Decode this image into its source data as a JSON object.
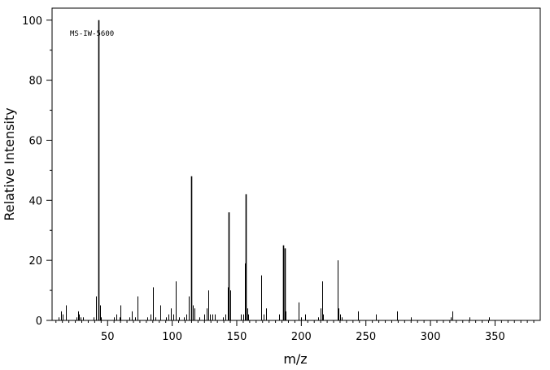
{
  "chart_data": {
    "type": "bar",
    "title": "",
    "annotation": "MS-IW-5600",
    "xlabel": "m/z",
    "ylabel": "Relative Intensity",
    "xlim": [
      7,
      385
    ],
    "ylim": [
      0,
      104
    ],
    "x_ticks": [
      50,
      100,
      150,
      200,
      250,
      300,
      350
    ],
    "y_ticks": [
      0,
      20,
      40,
      60,
      80,
      100
    ],
    "grid": false,
    "legend": "none",
    "peaks": [
      {
        "x": 12,
        "y": 1
      },
      {
        "x": 14,
        "y": 3
      },
      {
        "x": 15,
        "y": 2
      },
      {
        "x": 18,
        "y": 5
      },
      {
        "x": 26,
        "y": 1
      },
      {
        "x": 27,
        "y": 3
      },
      {
        "x": 28,
        "y": 2
      },
      {
        "x": 29,
        "y": 1
      },
      {
        "x": 31,
        "y": 1
      },
      {
        "x": 39,
        "y": 1
      },
      {
        "x": 41,
        "y": 8
      },
      {
        "x": 43,
        "y": 100
      },
      {
        "x": 44,
        "y": 5
      },
      {
        "x": 45,
        "y": 1
      },
      {
        "x": 55,
        "y": 1
      },
      {
        "x": 57,
        "y": 2
      },
      {
        "x": 59,
        "y": 1
      },
      {
        "x": 60,
        "y": 5
      },
      {
        "x": 67,
        "y": 1
      },
      {
        "x": 69,
        "y": 3
      },
      {
        "x": 71,
        "y": 1
      },
      {
        "x": 73,
        "y": 8
      },
      {
        "x": 81,
        "y": 1
      },
      {
        "x": 83,
        "y": 2
      },
      {
        "x": 85,
        "y": 11
      },
      {
        "x": 87,
        "y": 1
      },
      {
        "x": 91,
        "y": 5
      },
      {
        "x": 95,
        "y": 1
      },
      {
        "x": 97,
        "y": 2
      },
      {
        "x": 99,
        "y": 4
      },
      {
        "x": 101,
        "y": 2
      },
      {
        "x": 103,
        "y": 13
      },
      {
        "x": 105,
        "y": 1
      },
      {
        "x": 109,
        "y": 1
      },
      {
        "x": 111,
        "y": 2
      },
      {
        "x": 113,
        "y": 8
      },
      {
        "x": 115,
        "y": 48
      },
      {
        "x": 116,
        "y": 5
      },
      {
        "x": 117,
        "y": 4
      },
      {
        "x": 121,
        "y": 1
      },
      {
        "x": 125,
        "y": 2
      },
      {
        "x": 127,
        "y": 4
      },
      {
        "x": 128,
        "y": 10
      },
      {
        "x": 129,
        "y": 2
      },
      {
        "x": 131,
        "y": 2
      },
      {
        "x": 133,
        "y": 2
      },
      {
        "x": 139,
        "y": 1
      },
      {
        "x": 141,
        "y": 2
      },
      {
        "x": 143,
        "y": 11
      },
      {
        "x": 144,
        "y": 36
      },
      {
        "x": 145,
        "y": 10
      },
      {
        "x": 153,
        "y": 2
      },
      {
        "x": 155,
        "y": 2
      },
      {
        "x": 156,
        "y": 19
      },
      {
        "x": 157,
        "y": 42
      },
      {
        "x": 158,
        "y": 4
      },
      {
        "x": 159,
        "y": 2
      },
      {
        "x": 169,
        "y": 15
      },
      {
        "x": 171,
        "y": 2
      },
      {
        "x": 173,
        "y": 4
      },
      {
        "x": 183,
        "y": 2
      },
      {
        "x": 186,
        "y": 25
      },
      {
        "x": 187,
        "y": 24
      },
      {
        "x": 188,
        "y": 3
      },
      {
        "x": 198,
        "y": 6
      },
      {
        "x": 200,
        "y": 1
      },
      {
        "x": 203,
        "y": 2
      },
      {
        "x": 213,
        "y": 1
      },
      {
        "x": 215,
        "y": 4
      },
      {
        "x": 216,
        "y": 13
      },
      {
        "x": 217,
        "y": 2
      },
      {
        "x": 228,
        "y": 20
      },
      {
        "x": 229,
        "y": 4
      },
      {
        "x": 230,
        "y": 2
      },
      {
        "x": 231,
        "y": 1
      },
      {
        "x": 244,
        "y": 3
      },
      {
        "x": 258,
        "y": 2
      },
      {
        "x": 274,
        "y": 3
      },
      {
        "x": 285,
        "y": 1
      },
      {
        "x": 316,
        "y": 1
      },
      {
        "x": 317,
        "y": 3
      },
      {
        "x": 330,
        "y": 1
      },
      {
        "x": 345,
        "y": 1
      }
    ]
  }
}
